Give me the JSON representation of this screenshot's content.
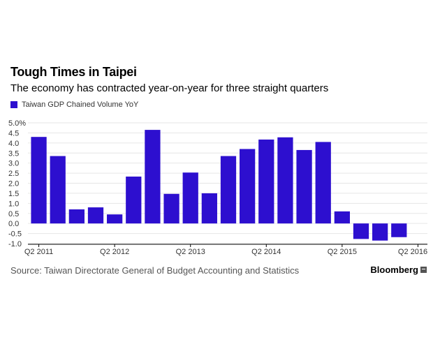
{
  "header": {
    "title": "Tough Times in Taipei",
    "subtitle": "The economy has contracted year-on-year for three straight quarters"
  },
  "legend": {
    "label": "Taiwan GDP Chained Volume YoY"
  },
  "footer": {
    "source": "Source: Taiwan Directorate General of Budget Accounting and Statistics",
    "brand": "Bloomberg"
  },
  "colors": {
    "bar": "#2d0fcf",
    "grid": "#e6e6e6",
    "axis": "#000000"
  },
  "chart_data": {
    "type": "bar",
    "title": "Tough Times in Taipei",
    "subtitle": "The economy has contracted year-on-year for three straight quarters",
    "categories": [
      "Q2 2011",
      "Q3 2011",
      "Q4 2011",
      "Q1 2012",
      "Q2 2012",
      "Q3 2012",
      "Q4 2012",
      "Q1 2013",
      "Q2 2013",
      "Q3 2013",
      "Q4 2013",
      "Q1 2014",
      "Q2 2014",
      "Q3 2014",
      "Q4 2014",
      "Q1 2015",
      "Q2 2015",
      "Q3 2015",
      "Q4 2015",
      "Q1 2016",
      "Q2 2016"
    ],
    "series": [
      {
        "name": "Taiwan GDP Chained Volume YoY",
        "values": [
          4.3,
          3.35,
          0.7,
          0.8,
          0.45,
          2.33,
          4.65,
          1.47,
          2.53,
          1.5,
          3.35,
          3.7,
          4.17,
          4.28,
          3.65,
          4.05,
          0.6,
          -0.77,
          -0.85,
          -0.68,
          null
        ]
      }
    ],
    "xticks": [
      "Q2 2011",
      "Q2 2012",
      "Q2 2013",
      "Q2 2014",
      "Q2 2015",
      "Q2 2016"
    ],
    "yticks": [
      "5.0%",
      "4.5",
      "4.0",
      "3.5",
      "3.0",
      "2.5",
      "2.0",
      "1.5",
      "1.0",
      "0.5",
      "0.0",
      "-0.5",
      "-1.0"
    ],
    "ylim": [
      -1.0,
      5.0
    ],
    "grid": true,
    "legend_position": "top-left"
  }
}
